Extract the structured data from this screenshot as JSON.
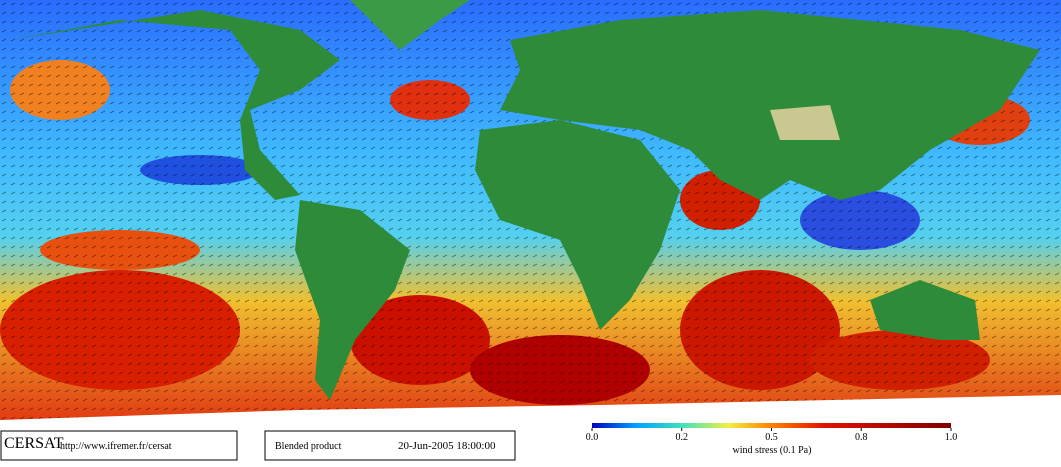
{
  "footer": {
    "logo": "CERSAT",
    "url": "http://www.ifremer.fr/cersat",
    "product": "Blended product",
    "date": "20-Jun-2005 18:00:00"
  },
  "colorbar": {
    "lim": [
      0,
      1
    ],
    "ticks": [
      {
        "value": 0,
        "label": "0.0"
      },
      0.2,
      0.5,
      0.8,
      {
        "value": 1,
        "label": "1.0"
      }
    ],
    "label": "wind stress (0.1 Pa)"
  }
}
